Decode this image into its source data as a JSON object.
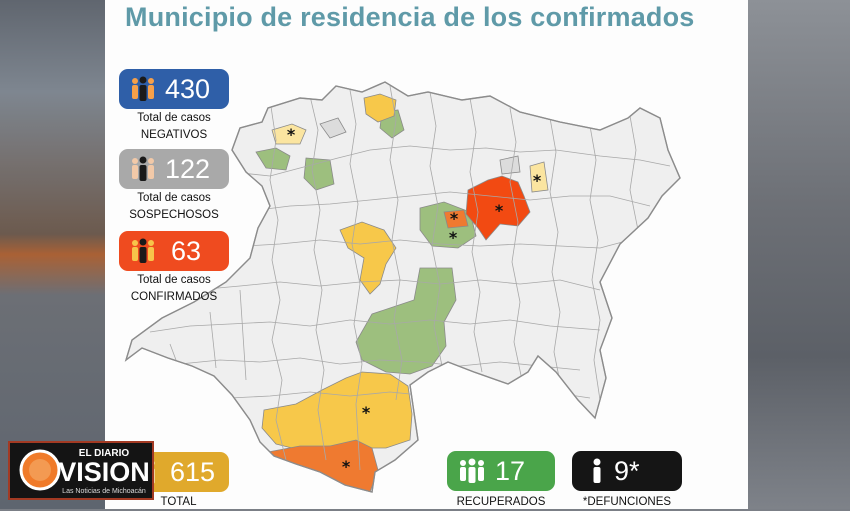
{
  "title": "Municipio de residencia de los confirmados",
  "stats": {
    "negativos": {
      "value": "430",
      "label1": "Total de casos",
      "label2": "NEGATIVOS",
      "color": "#2f5fa8"
    },
    "sospechosos": {
      "value": "122",
      "label1": "Total de casos",
      "label2": "SOSPECHOSOS",
      "color": "#a9a9a9"
    },
    "confirmados": {
      "value": "63",
      "label1": "Total de casos",
      "label2": "CONFIRMADOS",
      "color": "#ef4b1f"
    },
    "total": {
      "value": "615",
      "label": "TOTAL",
      "color": "#e0a92c"
    },
    "recuperados": {
      "value": "17",
      "label": "RECUPERADOS",
      "color": "#4aa54a"
    },
    "defunciones": {
      "value": "9*",
      "label": "*DEFUNCIONES",
      "color": "#151515"
    }
  },
  "legend_colors": {
    "confirmed_high": "#f24a12",
    "confirmed_mid": "#ef7a30",
    "confirmed_low": "#f7c84a",
    "confirmed_single": "#fbe5a0",
    "recovered": "#9dbf7e",
    "neutral": "#eeeeee"
  },
  "map_marker": "*",
  "logo": {
    "top": "EL DIARIO",
    "main": "VISION",
    "sub": "Las Noticias de Michoacán"
  }
}
